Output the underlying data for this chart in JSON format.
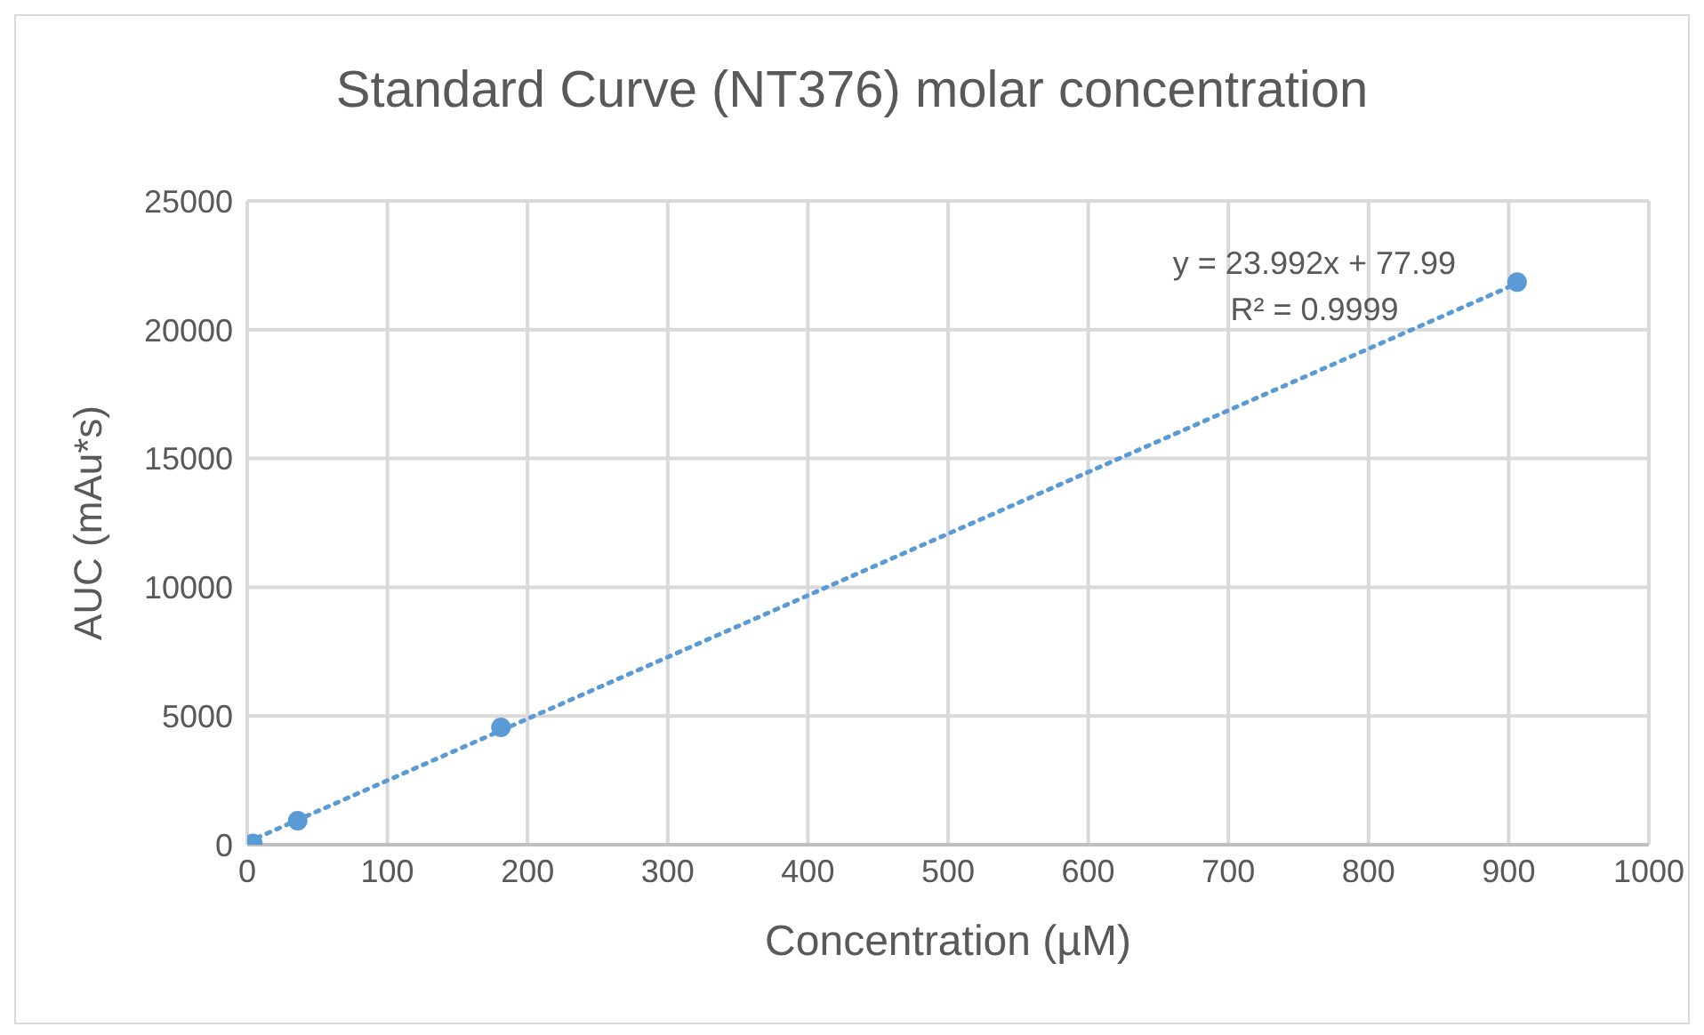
{
  "chart_data": {
    "type": "scatter",
    "title": "Standard Curve (NT376) molar concentration",
    "xlabel": "Concentration (µM)",
    "ylabel": "AUC (mAu*s)",
    "x": [
      4,
      36,
      181,
      906
    ],
    "series": [
      {
        "color": "#5b9bd5",
        "values": [
          50,
          930,
          4560,
          21850
        ],
        "marker": "circle"
      },
      {
        "type": "line",
        "color": "#5b9bd5",
        "x": [
          0,
          906
        ],
        "values": [
          100,
          21800
        ],
        "line_style": "dotted",
        "marker": "none"
      }
    ],
    "annotations": [
      "y = 23.992x + 77.99",
      "R² = 0.9999"
    ],
    "xlim": [
      0,
      1000
    ],
    "xticks": [
      0,
      100,
      200,
      300,
      400,
      500,
      600,
      700,
      800,
      900,
      1000
    ],
    "ylim": [
      0,
      25000
    ],
    "yticks": [
      0,
      5000,
      10000,
      15000,
      20000,
      25000
    ],
    "grid": true
  }
}
